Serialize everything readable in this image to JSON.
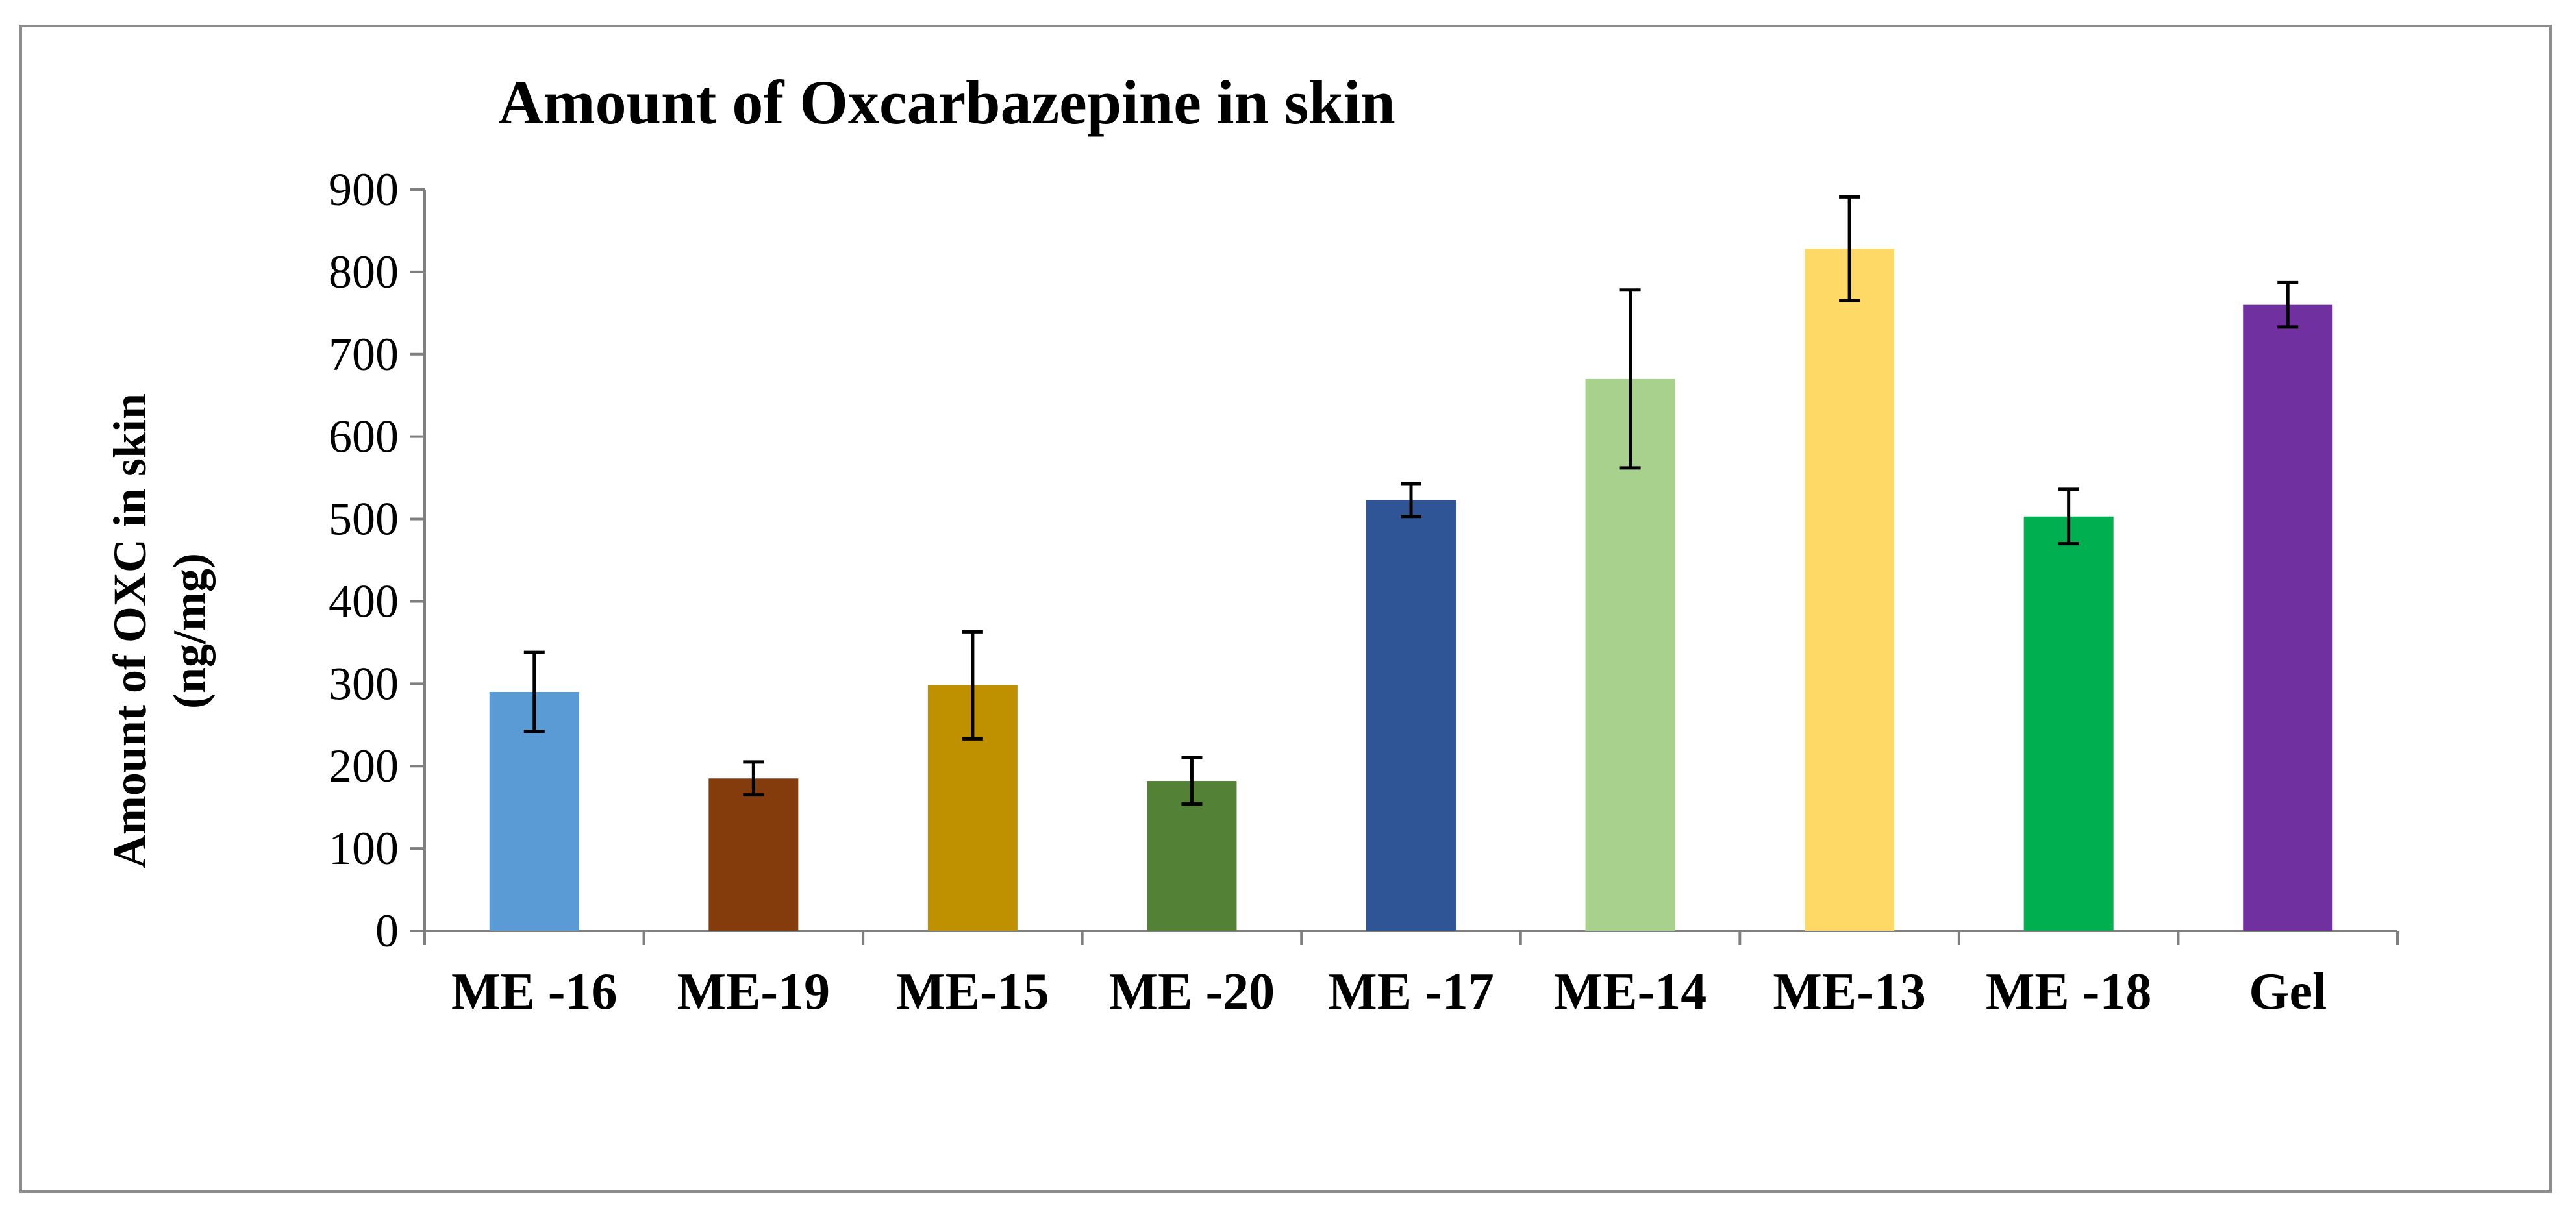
{
  "chart_data": {
    "type": "bar",
    "title": "Amount of Oxcarbazepine in skin",
    "ylabel_line1": "Amount of OXC in skin",
    "ylabel_line2": "(ng/mg)",
    "xlabel": "",
    "ylim": [
      0,
      900
    ],
    "yticks": [
      "0",
      "100",
      "200",
      "300",
      "400",
      "500",
      "600",
      "700",
      "800",
      "900"
    ],
    "categories": [
      "ME -16",
      "ME-19",
      "ME-15",
      "ME -20",
      "ME -17",
      "ME-14",
      "ME-13",
      "ME -18",
      "Gel"
    ],
    "values": [
      290,
      185,
      298,
      182,
      523,
      670,
      828,
      503,
      760
    ],
    "errors": [
      48,
      20,
      65,
      28,
      20,
      108,
      63,
      33,
      27
    ],
    "colors": [
      "#5b9bd5",
      "#843c0c",
      "#bf9000",
      "#538135",
      "#2f5597",
      "#a9d18e",
      "#ffd966",
      "#00b050",
      "#7030a0"
    ],
    "grid": false,
    "legend": "none"
  }
}
